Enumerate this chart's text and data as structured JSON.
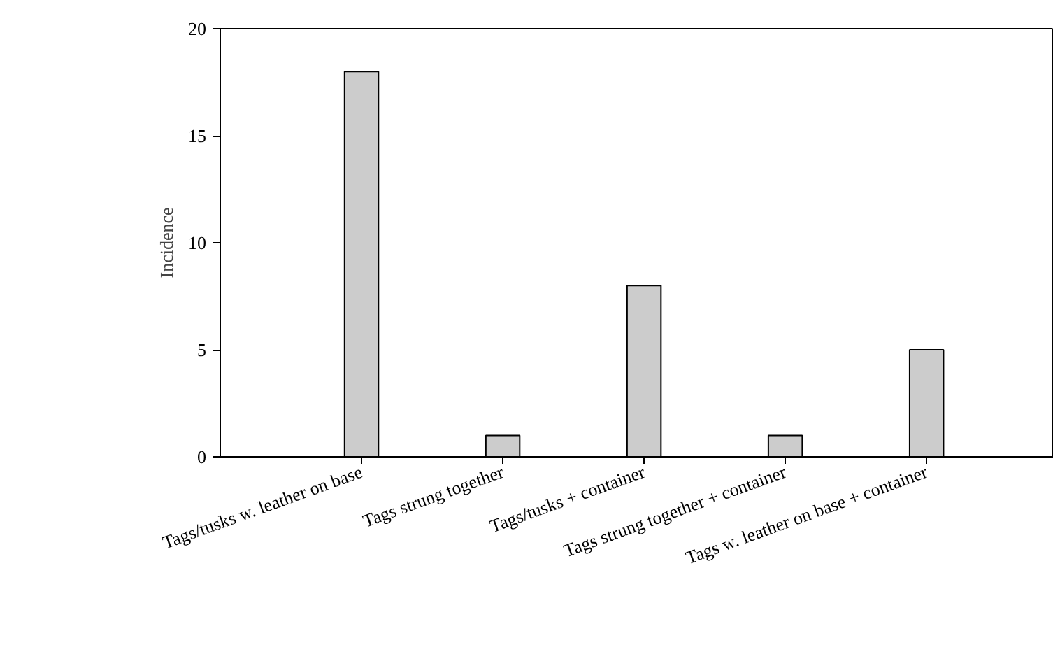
{
  "chart_data": {
    "type": "bar",
    "ylabel": "Incidence",
    "categories": [
      "Tags/tusks w. leather on base",
      "Tags strung together",
      "Tags/tusks + container",
      "Tags strung together + container",
      "Tags w. leather on base + container"
    ],
    "values": [
      18,
      1,
      8,
      1,
      5
    ],
    "color": "#cccccc",
    "ylim": [
      0,
      20
    ],
    "yticks": [
      0,
      5,
      10,
      15,
      20
    ],
    "grid": false
  }
}
